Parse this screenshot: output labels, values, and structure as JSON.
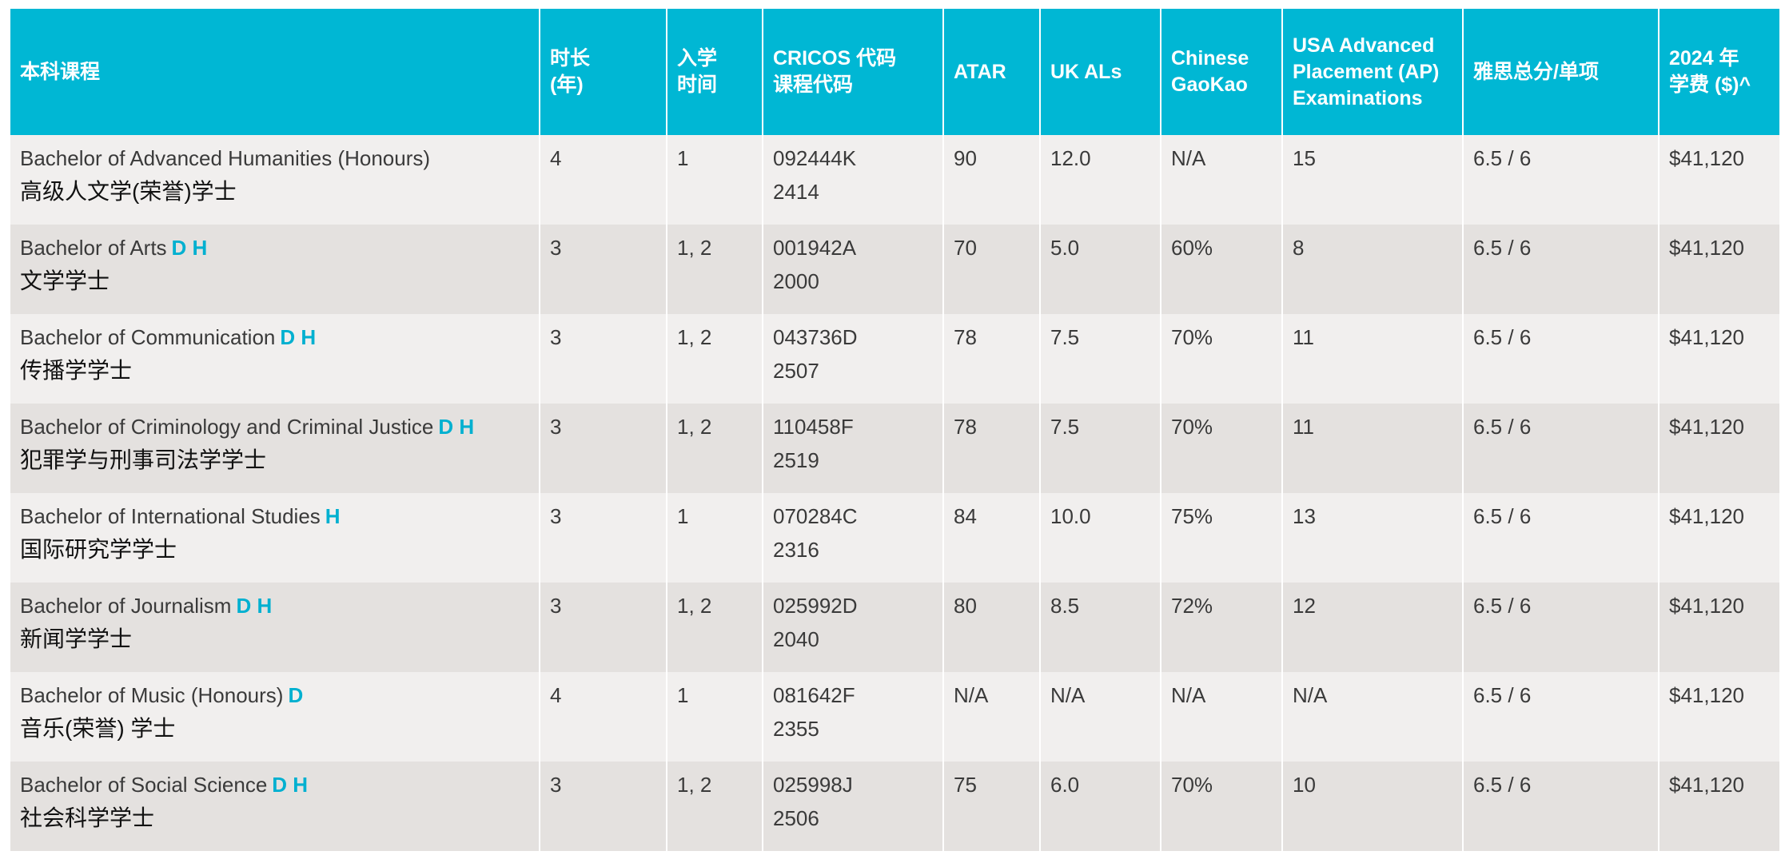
{
  "header": [
    "本科课程",
    "时长\n(年)",
    "入学\n时间",
    "CRICOS 代码\n课程代码",
    "ATAR",
    "UK ALs",
    "Chinese\nGaoKao",
    "USA Advanced\nPlacement (AP)\nExaminations",
    "雅思总分/单项",
    "2024 年\n学费 ($)^"
  ],
  "colors": {
    "header_bg": "#00b7d4",
    "flag": "#00b0d0",
    "row_light": "#f1efee",
    "row_dark": "#e4e1df"
  },
  "rows": [
    {
      "name_en": "Bachelor of Advanced Humanities (Honours)",
      "flags": "",
      "name_zh": "高级人文学(荣誉)学士",
      "years": "4",
      "intake": "1",
      "cricos": "092444K",
      "code": "2414",
      "atar": "90",
      "ukals": "12.0",
      "gaokao": "N/A",
      "ap": "15",
      "ielts": "6.5 / 6",
      "fee": "$41,120"
    },
    {
      "name_en": "Bachelor of Arts",
      "flags": "D H",
      "name_zh": "文学学士",
      "years": "3",
      "intake": "1, 2",
      "cricos": "001942A",
      "code": "2000",
      "atar": "70",
      "ukals": "5.0",
      "gaokao": "60%",
      "ap": "8",
      "ielts": "6.5 / 6",
      "fee": "$41,120"
    },
    {
      "name_en": "Bachelor of Communication",
      "flags": "D H",
      "name_zh": "传播学学士",
      "years": "3",
      "intake": "1, 2",
      "cricos": "043736D",
      "code": "2507",
      "atar": "78",
      "ukals": "7.5",
      "gaokao": "70%",
      "ap": "11",
      "ielts": "6.5 / 6",
      "fee": "$41,120"
    },
    {
      "name_en": "Bachelor of Criminology and Criminal Justice",
      "flags": "D H",
      "name_zh": "犯罪学与刑事司法学学士",
      "years": "3",
      "intake": "1, 2",
      "cricos": "110458F",
      "code": "2519",
      "atar": "78",
      "ukals": "7.5",
      "gaokao": "70%",
      "ap": "11",
      "ielts": "6.5 / 6",
      "fee": "$41,120"
    },
    {
      "name_en": "Bachelor of International Studies",
      "flags": "H",
      "name_zh": "国际研究学学士",
      "years": "3",
      "intake": "1",
      "cricos": "070284C",
      "code": "2316",
      "atar": "84",
      "ukals": "10.0",
      "gaokao": "75%",
      "ap": "13",
      "ielts": "6.5 / 6",
      "fee": "$41,120"
    },
    {
      "name_en": "Bachelor of Journalism",
      "flags": "D H",
      "name_zh": "新闻学学士",
      "years": "3",
      "intake": "1, 2",
      "cricos": "025992D",
      "code": "2040",
      "atar": "80",
      "ukals": "8.5",
      "gaokao": "72%",
      "ap": "12",
      "ielts": "6.5 / 6",
      "fee": "$41,120"
    },
    {
      "name_en": "Bachelor of Music (Honours)",
      "flags": "D",
      "name_zh": "音乐(荣誉) 学士",
      "years": "4",
      "intake": "1",
      "cricos": "081642F",
      "code": "2355",
      "atar": "N/A",
      "ukals": "N/A",
      "gaokao": "N/A",
      "ap": "N/A",
      "ielts": "6.5 / 6",
      "fee": "$41,120"
    },
    {
      "name_en": "Bachelor of Social Science",
      "flags": "D H",
      "name_zh": "社会科学学士",
      "years": "3",
      "intake": "1, 2",
      "cricos": "025998J",
      "code": "2506",
      "atar": "75",
      "ukals": "6.0",
      "gaokao": "70%",
      "ap": "10",
      "ielts": "6.5 / 6",
      "fee": "$41,120"
    }
  ]
}
